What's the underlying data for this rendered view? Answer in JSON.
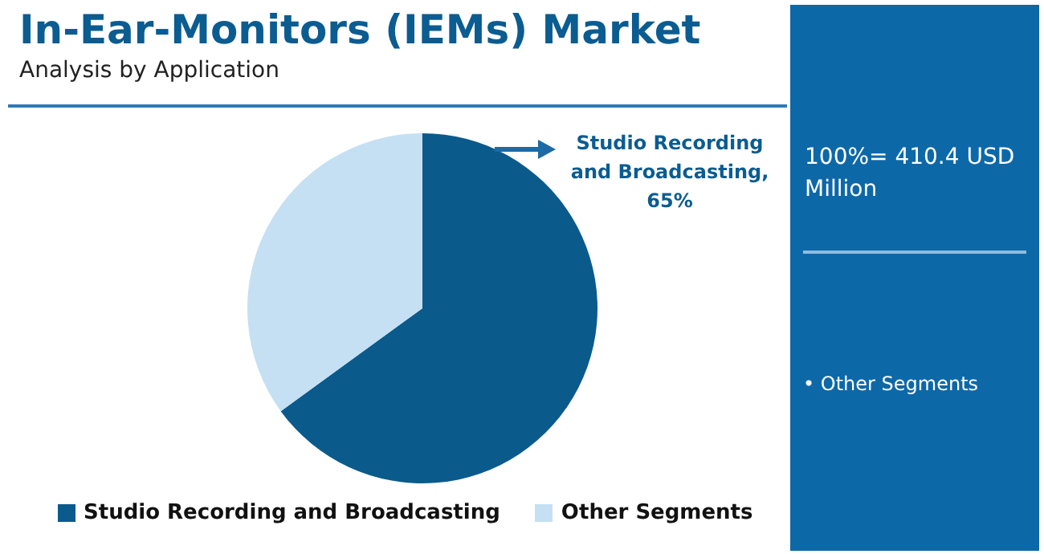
{
  "chart_data": {
    "type": "pie",
    "title": "In-Ear-Monitors (IEMs) Market",
    "subtitle": "Analysis by Application",
    "categories": [
      "Studio Recording and Broadcasting",
      "Other Segments"
    ],
    "values": [
      65,
      35
    ],
    "colors": [
      "#0b5a8c",
      "#c5e0f2"
    ],
    "legend": "bottom",
    "annotations": [
      "Studio Recording and Broadcasting, 65%",
      "100%= 410.4 USD Million",
      "• Other Segments"
    ]
  }
}
